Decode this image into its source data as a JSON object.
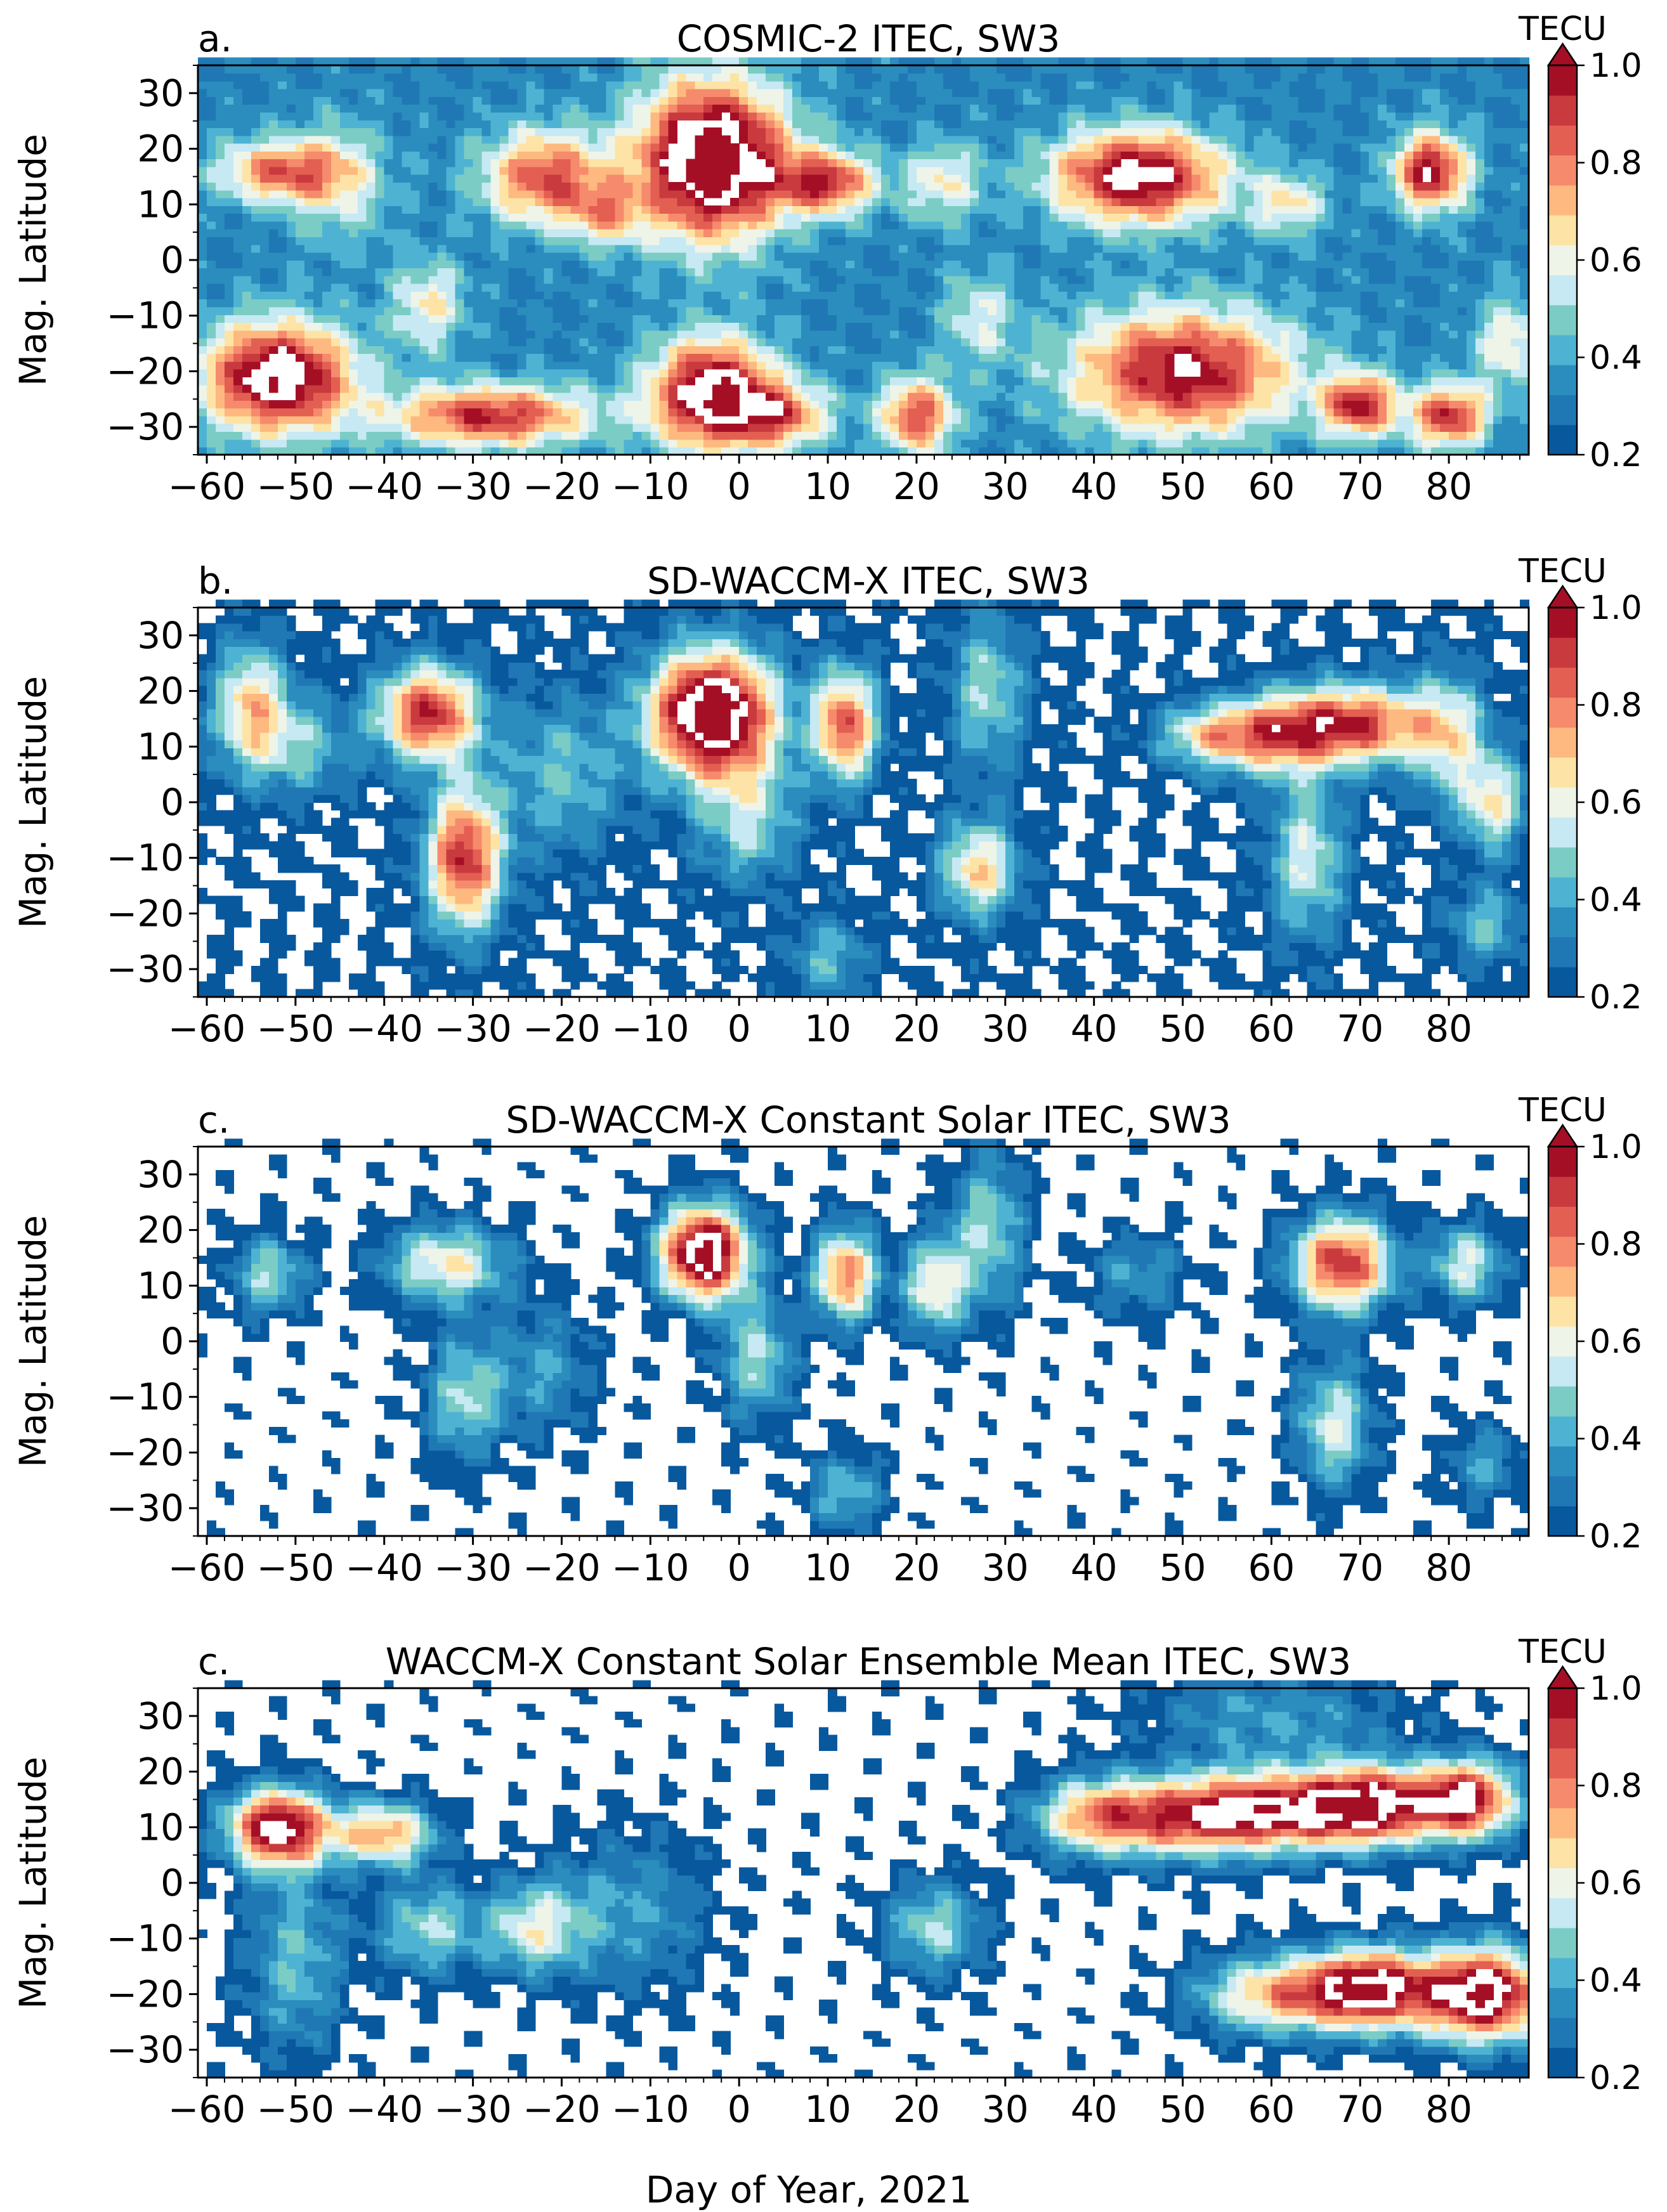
{
  "figure": {
    "xlabel": "Day of Year, 2021",
    "colorbar_units": "TECU",
    "colorbar_ticks": [
      "0.2",
      "0.4",
      "0.6",
      "0.8",
      "1.0"
    ],
    "colorbar_levels": [
      0.25,
      0.3,
      0.35,
      0.4,
      0.45,
      0.5,
      0.55,
      0.6,
      0.65,
      0.7,
      0.75,
      0.8,
      0.85,
      0.9,
      0.95,
      1.0
    ],
    "colors": [
      "#08589e",
      "#1f78b4",
      "#2b8cbe",
      "#4eb3d3",
      "#7bccc4",
      "#c6e9f3",
      "#eef4e8",
      "#fde4a6",
      "#fdb97f",
      "#f68a6c",
      "#e35f52",
      "#c93a3f",
      "#a50f26"
    ]
  },
  "chart_data": [
    {
      "type": "heatmap",
      "panel_label": "a.",
      "title": "COSMIC-2 ITEC, SW3",
      "xlabel": "",
      "ylabel": "Mag. Latitude",
      "xlim": [
        -61,
        89
      ],
      "ylim": [
        -35,
        35
      ],
      "x_ticks": [
        "−60",
        "−50",
        "−40",
        "−30",
        "−20",
        "−10",
        "0",
        "10",
        "20",
        "30",
        "40",
        "50",
        "60",
        "70",
        "80"
      ],
      "y_ticks": [
        "30",
        "20",
        "10",
        "0",
        "−10",
        "−20",
        "−30"
      ],
      "background_value": 0.35,
      "blobs": [
        {
          "x": -52,
          "y": 16,
          "v": 0.75,
          "sx": 5,
          "sy": 4
        },
        {
          "x": -52,
          "y": -21,
          "v": 1.0,
          "sx": 6,
          "sy": 7
        },
        {
          "x": -45,
          "y": 14,
          "v": 0.55,
          "sx": 4,
          "sy": 8
        },
        {
          "x": -35,
          "y": -8,
          "v": 0.6,
          "sx": 3,
          "sy": 6
        },
        {
          "x": -28,
          "y": -28,
          "v": 0.85,
          "sx": 8,
          "sy": 4
        },
        {
          "x": -22,
          "y": 15,
          "v": 0.8,
          "sx": 5,
          "sy": 6
        },
        {
          "x": -15,
          "y": 8,
          "v": 0.6,
          "sx": 3,
          "sy": 4
        },
        {
          "x": -3,
          "y": 18,
          "v": 1.1,
          "sx": 6,
          "sy": 10
        },
        {
          "x": -3,
          "y": -24,
          "v": 1.0,
          "sx": 5,
          "sy": 7
        },
        {
          "x": 5,
          "y": -28,
          "v": 0.7,
          "sx": 4,
          "sy": 4
        },
        {
          "x": 10,
          "y": 14,
          "v": 0.8,
          "sx": 4,
          "sy": 4
        },
        {
          "x": 20,
          "y": -28,
          "v": 0.8,
          "sx": 3,
          "sy": 5
        },
        {
          "x": 23,
          "y": 14,
          "v": 0.6,
          "sx": 3,
          "sy": 5
        },
        {
          "x": 27,
          "y": -10,
          "v": 0.55,
          "sx": 3,
          "sy": 6
        },
        {
          "x": 45,
          "y": 15,
          "v": 0.95,
          "sx": 7,
          "sy": 6
        },
        {
          "x": 50,
          "y": -20,
          "v": 0.9,
          "sx": 9,
          "sy": 8
        },
        {
          "x": 62,
          "y": 10,
          "v": 0.6,
          "sx": 3,
          "sy": 4
        },
        {
          "x": 70,
          "y": -26,
          "v": 0.85,
          "sx": 3,
          "sy": 4
        },
        {
          "x": 78,
          "y": 16,
          "v": 0.9,
          "sx": 3,
          "sy": 5
        },
        {
          "x": 80,
          "y": -28,
          "v": 0.85,
          "sx": 3,
          "sy": 4
        },
        {
          "x": 87,
          "y": -15,
          "v": 0.6,
          "sx": 3,
          "sy": 6
        }
      ]
    },
    {
      "type": "heatmap",
      "panel_label": "b.",
      "title": "SD-WACCM-X ITEC, SW3",
      "xlabel": "",
      "ylabel": "Mag. Latitude",
      "xlim": [
        -61,
        89
      ],
      "ylim": [
        -35,
        35
      ],
      "x_ticks": [
        "−60",
        "−50",
        "−40",
        "−30",
        "−20",
        "−10",
        "0",
        "10",
        "20",
        "30",
        "40",
        "50",
        "60",
        "70",
        "80"
      ],
      "y_ticks": [
        "30",
        "20",
        "10",
        "0",
        "−10",
        "−20",
        "−30"
      ],
      "background_value": 0.25,
      "blobs": [
        {
          "x": -55,
          "y": 17,
          "v": 0.65,
          "sx": 3,
          "sy": 8
        },
        {
          "x": -49,
          "y": 10,
          "v": 0.45,
          "sx": 4,
          "sy": 6
        },
        {
          "x": -35,
          "y": 16,
          "v": 0.85,
          "sx": 4,
          "sy": 6
        },
        {
          "x": -31,
          "y": -10,
          "v": 0.85,
          "sx": 3,
          "sy": 9
        },
        {
          "x": -20,
          "y": 5,
          "v": 0.45,
          "sx": 5,
          "sy": 10
        },
        {
          "x": -3,
          "y": 16,
          "v": 1.1,
          "sx": 5,
          "sy": 8
        },
        {
          "x": 1,
          "y": -3,
          "v": 0.5,
          "sx": 4,
          "sy": 8
        },
        {
          "x": 12,
          "y": 14,
          "v": 0.8,
          "sx": 2.5,
          "sy": 7
        },
        {
          "x": 10,
          "y": -28,
          "v": 0.45,
          "sx": 3,
          "sy": 5
        },
        {
          "x": 27,
          "y": -12,
          "v": 0.65,
          "sx": 3,
          "sy": 6
        },
        {
          "x": 28,
          "y": 20,
          "v": 0.5,
          "sx": 3,
          "sy": 10
        },
        {
          "x": 53,
          "y": 12,
          "v": 0.6,
          "sx": 4,
          "sy": 4
        },
        {
          "x": 60,
          "y": 12,
          "v": 0.6,
          "sx": 4,
          "sy": 5
        },
        {
          "x": 69,
          "y": 14,
          "v": 0.85,
          "sx": 6,
          "sy": 5
        },
        {
          "x": 64,
          "y": -10,
          "v": 0.55,
          "sx": 3,
          "sy": 10
        },
        {
          "x": 80,
          "y": 12,
          "v": 0.55,
          "sx": 3,
          "sy": 8
        },
        {
          "x": 85,
          "y": 0,
          "v": 0.6,
          "sx": 2.5,
          "sy": 6
        },
        {
          "x": 84,
          "y": -22,
          "v": 0.45,
          "sx": 3,
          "sy": 5
        }
      ]
    },
    {
      "type": "heatmap",
      "panel_label": "c.",
      "title": "SD-WACCM-X Constant Solar ITEC, SW3",
      "xlabel": "",
      "ylabel": "Mag. Latitude",
      "xlim": [
        -61,
        89
      ],
      "ylim": [
        -35,
        35
      ],
      "x_ticks": [
        "−60",
        "−50",
        "−40",
        "−30",
        "−20",
        "−10",
        "0",
        "10",
        "20",
        "30",
        "40",
        "50",
        "60",
        "70",
        "80"
      ],
      "y_ticks": [
        "30",
        "20",
        "10",
        "0",
        "−10",
        "−20",
        "−30"
      ],
      "background_value": 0.22,
      "blobs": [
        {
          "x": -53,
          "y": 12,
          "v": 0.5,
          "sx": 3,
          "sy": 5
        },
        {
          "x": -33,
          "y": 14,
          "v": 0.6,
          "sx": 5,
          "sy": 5
        },
        {
          "x": -31,
          "y": -10,
          "v": 0.5,
          "sx": 3,
          "sy": 8
        },
        {
          "x": -22,
          "y": -5,
          "v": 0.4,
          "sx": 4,
          "sy": 8
        },
        {
          "x": -4,
          "y": 16,
          "v": 1.05,
          "sx": 3.5,
          "sy": 6
        },
        {
          "x": 2,
          "y": -3,
          "v": 0.5,
          "sx": 3,
          "sy": 8
        },
        {
          "x": 12,
          "y": 12,
          "v": 0.75,
          "sx": 2.5,
          "sy": 6
        },
        {
          "x": 12,
          "y": -27,
          "v": 0.45,
          "sx": 3,
          "sy": 5
        },
        {
          "x": 22,
          "y": 10,
          "v": 0.6,
          "sx": 2.5,
          "sy": 6
        },
        {
          "x": 28,
          "y": 20,
          "v": 0.5,
          "sx": 3,
          "sy": 10
        },
        {
          "x": 45,
          "y": 12,
          "v": 0.4,
          "sx": 4,
          "sy": 5
        },
        {
          "x": 68,
          "y": 14,
          "v": 0.85,
          "sx": 4,
          "sy": 6
        },
        {
          "x": 67,
          "y": -15,
          "v": 0.55,
          "sx": 3,
          "sy": 8
        },
        {
          "x": 82,
          "y": 14,
          "v": 0.55,
          "sx": 3,
          "sy": 5
        },
        {
          "x": 84,
          "y": -22,
          "v": 0.4,
          "sx": 3,
          "sy": 5
        }
      ]
    },
    {
      "type": "heatmap",
      "panel_label": "c.",
      "title": "WACCM-X Constant Solar Ensemble Mean ITEC, SW3",
      "xlabel": "Day of Year, 2021",
      "ylabel": "Mag. Latitude",
      "xlim": [
        -61,
        89
      ],
      "ylim": [
        -35,
        35
      ],
      "x_ticks": [
        "−60",
        "−50",
        "−40",
        "−30",
        "−20",
        "−10",
        "0",
        "10",
        "20",
        "30",
        "40",
        "50",
        "60",
        "70",
        "80"
      ],
      "y_ticks": [
        "30",
        "20",
        "10",
        "0",
        "−10",
        "−20",
        "−30"
      ],
      "background_value": 0.22,
      "blobs": [
        {
          "x": -52,
          "y": 10,
          "v": 0.95,
          "sx": 4,
          "sy": 5
        },
        {
          "x": -40,
          "y": 9,
          "v": 0.7,
          "sx": 4,
          "sy": 4
        },
        {
          "x": -50,
          "y": -14,
          "v": 0.45,
          "sx": 4,
          "sy": 12
        },
        {
          "x": -35,
          "y": -8,
          "v": 0.5,
          "sx": 4,
          "sy": 6
        },
        {
          "x": -23,
          "y": -8,
          "v": 0.55,
          "sx": 4,
          "sy": 6
        },
        {
          "x": -12,
          "y": -5,
          "v": 0.4,
          "sx": 6,
          "sy": 10
        },
        {
          "x": 22,
          "y": -8,
          "v": 0.5,
          "sx": 4,
          "sy": 6
        },
        {
          "x": 40,
          "y": 12,
          "v": 0.65,
          "sx": 5,
          "sy": 5
        },
        {
          "x": 50,
          "y": 12,
          "v": 0.7,
          "sx": 6,
          "sy": 5
        },
        {
          "x": 60,
          "y": 13,
          "v": 0.8,
          "sx": 6,
          "sy": 5
        },
        {
          "x": 71,
          "y": 14,
          "v": 0.95,
          "sx": 5,
          "sy": 5
        },
        {
          "x": 82,
          "y": 15,
          "v": 0.9,
          "sx": 4,
          "sy": 5
        },
        {
          "x": 60,
          "y": -20,
          "v": 0.65,
          "sx": 6,
          "sy": 5
        },
        {
          "x": 71,
          "y": -19,
          "v": 0.95,
          "sx": 5,
          "sy": 5
        },
        {
          "x": 84,
          "y": -20,
          "v": 1.0,
          "sx": 5,
          "sy": 6
        },
        {
          "x": 60,
          "y": 30,
          "v": 0.4,
          "sx": 10,
          "sy": 6
        }
      ]
    }
  ]
}
